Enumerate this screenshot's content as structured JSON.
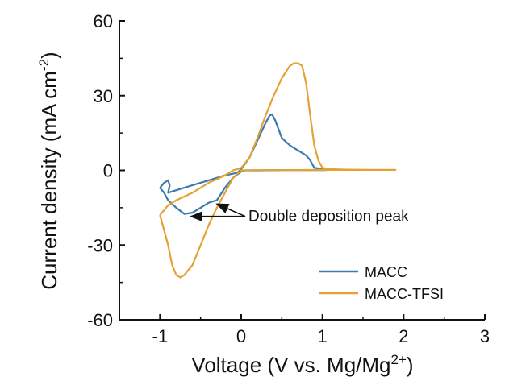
{
  "chart_data": {
    "type": "line",
    "xlabel": "Voltage (V vs. Mg/Mg",
    "xlabel_sup": "2+",
    "xlabel_end": ")",
    "ylabel": "Current density (mA cm",
    "ylabel_sup": "-2",
    "ylabel_end": ")",
    "xlim": [
      -1.5,
      3
    ],
    "ylim": [
      -60,
      60
    ],
    "xticks": [
      -1,
      0,
      1,
      2,
      3
    ],
    "xtick_labels": [
      "-1",
      "0",
      "1",
      "2",
      "3"
    ],
    "yticks": [
      -60,
      -30,
      0,
      30,
      60
    ],
    "ytick_labels": [
      "-60",
      "-30",
      "0",
      "30",
      "60"
    ],
    "grid": false,
    "legend_position": "bottom-right",
    "series": [
      {
        "name": "MACC",
        "color": "#3b7bb0",
        "x": [
          -1.0,
          -0.95,
          -0.9,
          -0.88,
          -0.9,
          -0.7,
          -0.4,
          -0.2,
          -0.05,
          0.0,
          0.1,
          0.2,
          0.3,
          0.35,
          0.38,
          0.42,
          0.5,
          0.6,
          0.7,
          0.8,
          0.85,
          0.9,
          0.95,
          1.0,
          1.05,
          1.1,
          1.3,
          1.1,
          1.0,
          0.8,
          0.5,
          0.2,
          0.05,
          0.0,
          -0.1,
          -0.2,
          -0.3,
          -0.4,
          -0.5,
          -0.6,
          -0.7,
          -0.8,
          -0.9,
          -0.95,
          -1.0
        ],
        "y": [
          -7,
          -5,
          -4,
          -6,
          -9,
          -7,
          -4,
          -2,
          -1,
          0.5,
          5,
          12,
          19,
          22,
          22.5,
          20,
          13,
          10,
          8,
          6,
          4,
          1,
          0.8,
          0.5,
          0.4,
          0.3,
          0.3,
          0.2,
          0.1,
          0.1,
          0.1,
          0,
          0,
          -0.5,
          -3,
          -7,
          -12,
          -13,
          -15,
          -17,
          -17.5,
          -15,
          -12,
          -9,
          -7
        ]
      },
      {
        "name": "MACC-TFSI",
        "color": "#e5a233",
        "x": [
          -1.0,
          -0.9,
          -0.8,
          -0.6,
          -0.4,
          -0.2,
          -0.1,
          0.0,
          0.1,
          0.2,
          0.3,
          0.4,
          0.5,
          0.6,
          0.65,
          0.7,
          0.75,
          0.8,
          0.85,
          0.9,
          0.95,
          1.0,
          1.1,
          1.3,
          1.6,
          1.9,
          1.6,
          1.2,
          1.0,
          0.5,
          0.2,
          0.0,
          -0.1,
          -0.2,
          -0.3,
          -0.4,
          -0.5,
          -0.6,
          -0.7,
          -0.75,
          -0.8,
          -0.85,
          -0.9,
          -0.95,
          -1.0
        ],
        "y": [
          -18,
          -14,
          -12,
          -9,
          -5,
          -2,
          0,
          1,
          5,
          13,
          22,
          30,
          37,
          42,
          43,
          43,
          42,
          35,
          22,
          10,
          4,
          1,
          0.5,
          0.3,
          0.2,
          0.2,
          0.2,
          0.2,
          0.2,
          0.1,
          0.1,
          0,
          -3,
          -9,
          -15,
          -22,
          -30,
          -38,
          -42,
          -43,
          -42,
          -38,
          -30,
          -24,
          -18
        ]
      }
    ],
    "annotation": {
      "text": "Double deposition peak",
      "points": [
        [
          -0.62,
          -18.5
        ],
        [
          -0.3,
          -13.5
        ]
      ],
      "anchor": [
        0.05,
        -18.5
      ]
    }
  }
}
